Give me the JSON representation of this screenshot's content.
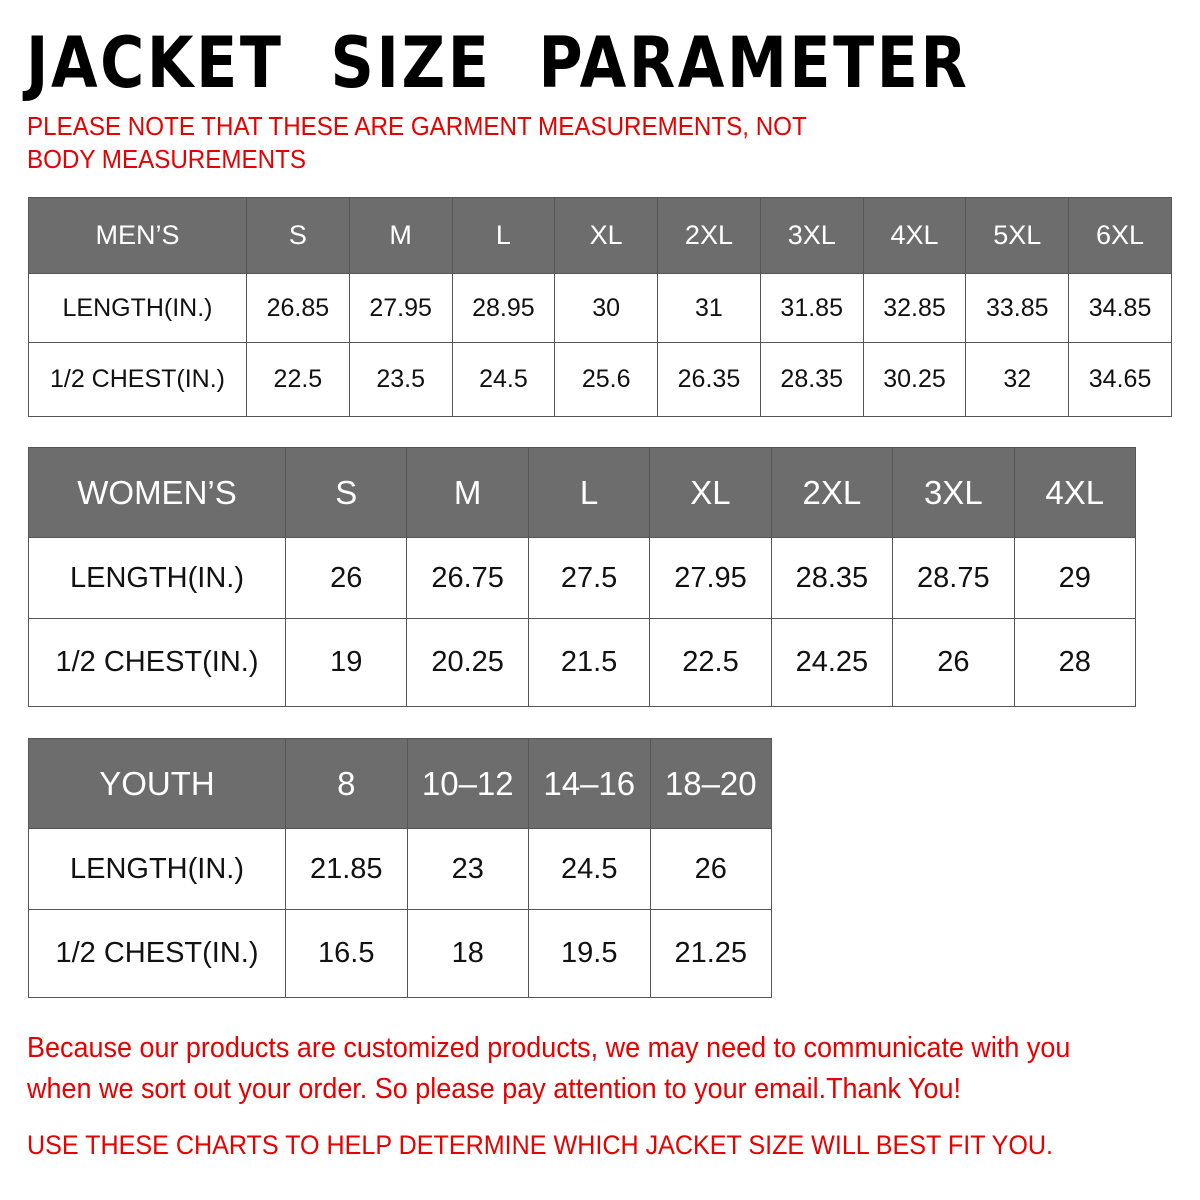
{
  "title": "JACKET  SIZE  PARAMETER",
  "note": "PLEASE NOTE THAT THESE ARE GARMENT MEASUREMENTS, NOT BODY MEASUREMENTS",
  "colors": {
    "header_bg": "#6d6d6d",
    "accent_red": "#e60000"
  },
  "tables": {
    "men": {
      "header": [
        "MEN’S",
        "S",
        "M",
        "L",
        "XL",
        "2XL",
        "3XL",
        "4XL",
        "5XL",
        "6XL"
      ],
      "rows": [
        [
          "LENGTH(IN.)",
          "26.85",
          "27.95",
          "28.95",
          "30",
          "31",
          "31.85",
          "32.85",
          "33.85",
          "34.85"
        ],
        [
          "1/2 CHEST(IN.)",
          "22.5",
          "23.5",
          "24.5",
          "25.6",
          "26.35",
          "28.35",
          "30.25",
          "32",
          "34.65"
        ]
      ]
    },
    "women": {
      "header": [
        "WOMEN’S",
        "S",
        "M",
        "L",
        "XL",
        "2XL",
        "3XL",
        "4XL"
      ],
      "rows": [
        [
          "LENGTH(IN.)",
          "26",
          "26.75",
          "27.5",
          "27.95",
          "28.35",
          "28.75",
          "29"
        ],
        [
          "1/2 CHEST(IN.)",
          "19",
          "20.25",
          "21.5",
          "22.5",
          "24.25",
          "26",
          "28"
        ]
      ]
    },
    "youth": {
      "header": [
        "YOUTH",
        "8",
        "10–12",
        "14–16",
        "18–20"
      ],
      "rows": [
        [
          "LENGTH(IN.)",
          "21.85",
          "23",
          "24.5",
          "26"
        ],
        [
          "1/2 CHEST(IN.)",
          "16.5",
          "18",
          "19.5",
          "21.25"
        ]
      ]
    }
  },
  "footer": {
    "message": "Because our products are customized products, we may need to communicate with you when we sort out your order. So please pay attention to your email.Thank You!",
    "instruction": "USE THESE CHARTS TO HELP DETERMINE WHICH JACKET SIZE WILL BEST FIT YOU."
  }
}
